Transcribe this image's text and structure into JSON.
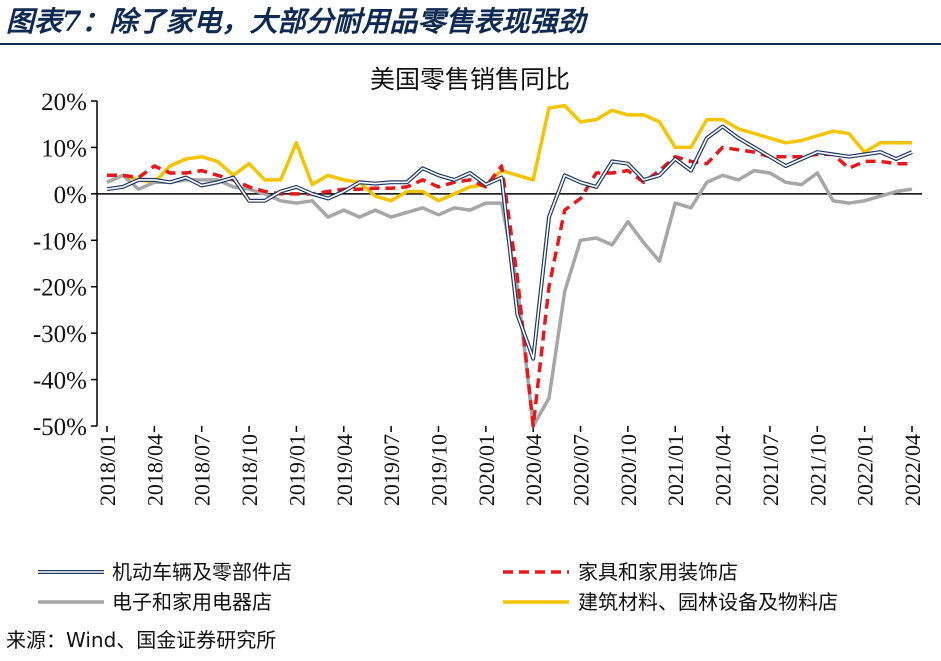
{
  "page": {
    "figure_title": "图表7：除了家电，大部分耐用品零售表现强劲",
    "source": "来源：Wind、国金证券研究所"
  },
  "colors": {
    "title": "#0f2a52",
    "auto_outer": "#1f3864",
    "auto_inner": "#ffffff",
    "furniture": "#e8171b",
    "electronics": "#a6a6a6",
    "building": "#f5c400",
    "axis": "#000000",
    "text": "#111111"
  },
  "chart_data": {
    "type": "line",
    "title": "美国零售销售同比",
    "xlabel": "",
    "ylabel": "",
    "ylim": [
      -50,
      20
    ],
    "yticks": [
      -50,
      -40,
      -30,
      -20,
      -10,
      0,
      10,
      20
    ],
    "ytick_labels": [
      "-50%",
      "-40%",
      "-30%",
      "-20%",
      "-10%",
      "0%",
      "10%",
      "20%"
    ],
    "x": [
      "2018/01",
      "2018/02",
      "2018/03",
      "2018/04",
      "2018/05",
      "2018/06",
      "2018/07",
      "2018/08",
      "2018/09",
      "2018/10",
      "2018/11",
      "2018/12",
      "2019/01",
      "2019/02",
      "2019/03",
      "2019/04",
      "2019/05",
      "2019/06",
      "2019/07",
      "2019/08",
      "2019/09",
      "2019/10",
      "2019/11",
      "2019/12",
      "2020/01",
      "2020/02",
      "2020/03",
      "2020/04",
      "2020/05",
      "2020/06",
      "2020/07",
      "2020/08",
      "2020/09",
      "2020/10",
      "2020/11",
      "2020/12",
      "2021/01",
      "2021/02",
      "2021/03",
      "2021/04",
      "2021/05",
      "2021/06",
      "2021/07",
      "2021/08",
      "2021/09",
      "2021/10",
      "2021/11",
      "2021/12",
      "2022/01",
      "2022/02",
      "2022/03",
      "2022/04"
    ],
    "xtick_labels": [
      "2018/01",
      "2018/04",
      "2018/07",
      "2018/10",
      "2019/01",
      "2019/04",
      "2019/07",
      "2019/10",
      "2020/01",
      "2020/04",
      "2020/07",
      "2020/10",
      "2021/01",
      "2021/04",
      "2021/07",
      "2021/10",
      "2022/01",
      "2022/04"
    ],
    "legend_position": "bottom",
    "series": [
      {
        "name": "机动车辆及零部件店",
        "style": "double",
        "values": [
          1,
          1.5,
          3,
          3,
          2.5,
          3.5,
          1.8,
          2.5,
          3.5,
          -1.5,
          -1.5,
          0.5,
          1.5,
          0,
          -1,
          0.5,
          2.5,
          2.2,
          2.5,
          2.5,
          5.5,
          4,
          3,
          4.5,
          2,
          3.5,
          -26,
          -35.5,
          -5,
          4,
          2.5,
          1.5,
          7,
          6.5,
          3,
          4,
          7.5,
          5,
          12,
          14.5,
          12,
          10,
          8,
          6,
          7.5,
          9,
          8.5,
          8,
          8.5,
          9,
          7.5,
          9
        ]
      },
      {
        "name": "家具和家用装饰店",
        "style": "dashed",
        "values": [
          4,
          4,
          3.5,
          6,
          4.5,
          4.5,
          5,
          4,
          3,
          1.5,
          0.5,
          0,
          0,
          0,
          0.5,
          1,
          1,
          1.2,
          1.2,
          1.5,
          3,
          1.5,
          2.5,
          3,
          1.5,
          6,
          -18,
          -50,
          -20,
          -3.5,
          -1,
          4.5,
          4.5,
          5,
          2.5,
          5,
          8,
          7,
          6.5,
          10,
          9.5,
          9,
          8,
          8,
          8,
          8.5,
          8.5,
          5.5,
          7,
          7,
          6.5,
          6.5
        ]
      },
      {
        "name": "电子和家用电器店",
        "style": "solid",
        "values": [
          2.5,
          4,
          1,
          2.5,
          2.5,
          3,
          3,
          3,
          1.5,
          1,
          0,
          -1.5,
          -2,
          -1.5,
          -5,
          -3.5,
          -5,
          -3.5,
          -5,
          -4,
          -3,
          -4.5,
          -3,
          -3.5,
          -2,
          -2,
          -20,
          -50,
          -44,
          -21,
          -10,
          -9.5,
          -11,
          -6,
          -10.5,
          -14.5,
          -2,
          -3,
          2.5,
          4,
          3,
          5,
          4.5,
          2.5,
          2,
          4.5,
          -1.5,
          -2,
          -1.5,
          -0.5,
          0.5,
          1
        ]
      },
      {
        "name": "建筑材料、园林设备及物料店",
        "style": "solid",
        "values": [
          2.5,
          4,
          3,
          2.5,
          6,
          7.5,
          8,
          7,
          4,
          6.5,
          3,
          3,
          11,
          2,
          4,
          3,
          2.5,
          -0.5,
          -1.5,
          0.5,
          0.5,
          -1.5,
          0,
          1.5,
          2,
          5,
          4,
          3,
          18.5,
          19,
          15.5,
          16,
          18,
          17,
          17,
          15.5,
          10,
          10,
          16,
          16,
          14,
          13,
          12,
          11,
          11.5,
          12.5,
          13.5,
          13,
          9,
          11,
          11,
          11
        ]
      }
    ]
  }
}
